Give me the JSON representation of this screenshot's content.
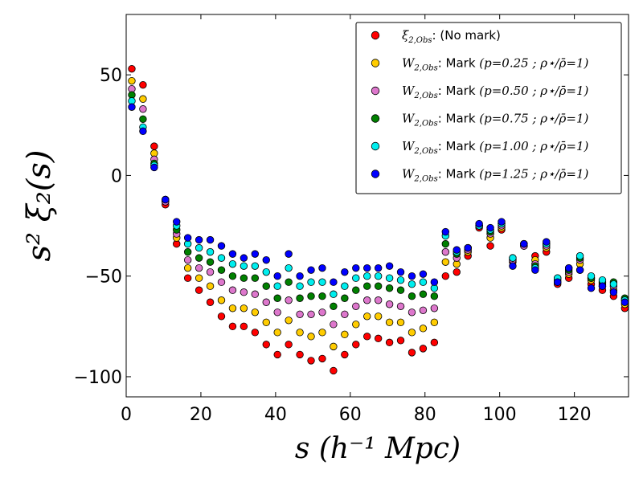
{
  "chart_data": {
    "type": "scatter",
    "title": "",
    "xlabel": "s (h⁻¹ Mpc)",
    "ylabel": "s² ξ₂(s)",
    "xlim": [
      0,
      134.5
    ],
    "ylim": [
      -110,
      80
    ],
    "xticks": [
      0,
      20,
      40,
      60,
      80,
      100,
      120
    ],
    "yticks": [
      50,
      0,
      -50,
      -100
    ],
    "grid": false,
    "legend_position": "top-right",
    "x": [
      1.5,
      4.5,
      7.5,
      10.5,
      13.5,
      16.5,
      19.5,
      22.5,
      25.5,
      28.5,
      31.5,
      34.5,
      37.5,
      40.5,
      43.5,
      46.5,
      49.5,
      52.5,
      55.5,
      58.5,
      61.5,
      64.5,
      67.5,
      70.5,
      73.5,
      76.5,
      79.5,
      82.5,
      85.5,
      88.5,
      91.5,
      94.5,
      97.5,
      100.5,
      103.5,
      106.5,
      109.5,
      112.5,
      115.5,
      118.5,
      121.5,
      124.5,
      127.5,
      130.5,
      133.5
    ],
    "series": [
      {
        "name": "ξ2,Obs: (No mark)",
        "legend_symbol": "ξ",
        "legend_sub": "2,Obs",
        "legend_text": ": (No mark)",
        "color": "#ff0000",
        "values": [
          53,
          45,
          14.5,
          -14.5,
          -34,
          -51,
          -57,
          -63,
          -70,
          -75,
          -75,
          -78,
          -84,
          -89,
          -84,
          -89,
          -92,
          -91,
          -97,
          -89,
          -84,
          -80,
          -81,
          -83,
          -82,
          -88,
          -86,
          -83,
          -50,
          -48,
          -40,
          -26,
          -35,
          -27,
          -43,
          -35,
          -40,
          -38,
          -54,
          -51,
          -47,
          -54,
          -57,
          -60,
          -66
        ]
      },
      {
        "name": "W2,Obs: Mark (p=0.25 ; ρ⋆/ρ̄=1)",
        "legend_symbol": "W",
        "legend_sub": "2,Obs",
        "legend_text": ": Mark ",
        "legend_params": "(p=0.25 ; ρ⋆/ρ̄=1)",
        "color": "#ffcc00",
        "values": [
          47,
          38,
          11,
          -13,
          -31,
          -46,
          -51,
          -55,
          -62,
          -66,
          -66,
          -68,
          -73,
          -78,
          -72,
          -78,
          -80,
          -78,
          -85,
          -79,
          -74,
          -70,
          -70,
          -73,
          -73,
          -78,
          -76,
          -73,
          -43,
          -44,
          -38,
          -25,
          -31,
          -26,
          -42,
          -35,
          -42,
          -36,
          -53,
          -49,
          -44,
          -52,
          -55,
          -57,
          -64
        ]
      },
      {
        "name": "W2,Obs: Mark (p=0.50 ; ρ⋆/ρ̄=1)",
        "legend_symbol": "W",
        "legend_sub": "2,Obs",
        "legend_text": ": Mark ",
        "legend_params": "(p=0.50 ; ρ⋆/ρ̄=1)",
        "color": "#dd77cc",
        "values": [
          43,
          33,
          8,
          -13,
          -29,
          -42,
          -46,
          -48,
          -53,
          -57,
          -58,
          -59,
          -63,
          -68,
          -62,
          -69,
          -69,
          -68,
          -74,
          -69,
          -65,
          -62,
          -62,
          -64,
          -65,
          -68,
          -67,
          -66,
          -38,
          -41,
          -37,
          -25,
          -29,
          -25,
          -42,
          -35,
          -44,
          -35,
          -52,
          -48,
          -42,
          -51,
          -54,
          -55,
          -62
        ]
      },
      {
        "name": "W2,Obs: Mark (p=0.75 ; ρ⋆/ρ̄=1)",
        "legend_symbol": "W",
        "legend_sub": "2,Obs",
        "legend_text": ": Mark ",
        "legend_params": "(p=0.75 ; ρ⋆/ρ̄=1)",
        "color": "#008000",
        "values": [
          40,
          28,
          6,
          -12,
          -27,
          -38,
          -41,
          -43,
          -47,
          -50,
          -51,
          -51,
          -55,
          -61,
          -53,
          -61,
          -60,
          -60,
          -65,
          -61,
          -57,
          -55,
          -55,
          -56,
          -57,
          -60,
          -59,
          -60,
          -34,
          -39,
          -36,
          -25,
          -28,
          -24,
          -41,
          -34,
          -45,
          -34,
          -51,
          -47,
          -41,
          -51,
          -53,
          -53,
          -61
        ]
      },
      {
        "name": "W2,Obs: Mark (p=1.00 ; ρ⋆/ρ̄=1)",
        "legend_symbol": "W",
        "legend_sub": "2,Obs",
        "legend_text": ": Mark ",
        "legend_params": "(p=1.00 ; ρ⋆/ρ̄=1)",
        "color": "#00eeee",
        "values": [
          37,
          24,
          5,
          -12,
          -25,
          -34,
          -36,
          -38,
          -41,
          -44,
          -45,
          -45,
          -48,
          -55,
          -46,
          -55,
          -53,
          -53,
          -59,
          -55,
          -51,
          -50,
          -50,
          -51,
          -52,
          -54,
          -53,
          -56,
          -30,
          -38,
          -36,
          -25,
          -27,
          -24,
          -41,
          -34,
          -46,
          -34,
          -51,
          -46,
          -40,
          -50,
          -52,
          -54,
          -62
        ]
      },
      {
        "name": "W2,Obs: Mark (p=1.25 ; ρ⋆/ρ̄=1)",
        "legend_symbol": "W",
        "legend_sub": "2,Obs",
        "legend_text": ": Mark ",
        "legend_params": "(p=1.25 ; ρ⋆/ρ̄=1)",
        "color": "#0000ff",
        "values": [
          34,
          22,
          4,
          -12,
          -23,
          -31,
          -32,
          -32,
          -35,
          -39,
          -41,
          -39,
          -42,
          -50,
          -39,
          -50,
          -47,
          -46,
          -53,
          -48,
          -46,
          -46,
          -46,
          -45,
          -48,
          -50,
          -49,
          -53,
          -28,
          -37,
          -36,
          -24,
          -26,
          -23,
          -45,
          -34,
          -47,
          -33,
          -53,
          -46,
          -47,
          -56,
          -55,
          -58,
          -63
        ]
      }
    ]
  }
}
